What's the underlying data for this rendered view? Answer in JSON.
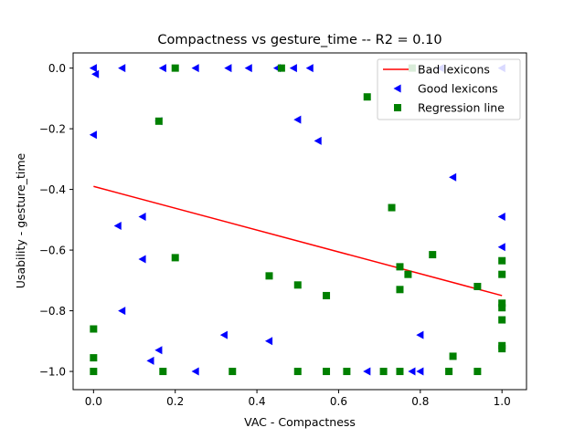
{
  "chart_data": {
    "type": "scatter",
    "title": "Compactness  vs  gesture_time -- R2 = 0.10",
    "xlabel": "VAC - Compactness",
    "ylabel": "Usability - gesture_time",
    "xlim": [
      -0.05,
      1.06
    ],
    "ylim": [
      -1.06,
      0.05
    ],
    "x_ticks": [
      0.0,
      0.2,
      0.4,
      0.6,
      0.8,
      1.0
    ],
    "x_tick_labels": [
      "0.0",
      "0.2",
      "0.4",
      "0.6",
      "0.8",
      "1.0"
    ],
    "y_ticks": [
      0.0,
      -0.2,
      -0.4,
      -0.6,
      -0.8,
      -1.0
    ],
    "y_tick_labels": [
      "0.0",
      "−0.2",
      "−0.4",
      "−0.6",
      "−0.8",
      "−1.0"
    ],
    "legend_position": "top-right",
    "legend": [
      {
        "label": "Bad lexicons",
        "marker": "line",
        "color": "#ff0000"
      },
      {
        "label": "Good lexicons",
        "marker": "triangle-left",
        "color": "#0000ff"
      },
      {
        "label": "Regression line",
        "marker": "square",
        "color": "#008000"
      }
    ],
    "series": [
      {
        "name": "Bad lexicons",
        "kind": "line",
        "color": "#ff0000",
        "points": [
          [
            0.0,
            -0.39
          ],
          [
            1.0,
            -0.75
          ]
        ]
      },
      {
        "name": "Good lexicons",
        "kind": "triangle-left",
        "color": "#0000ff",
        "points": [
          [
            0.0,
            0.0
          ],
          [
            0.005,
            -0.02
          ],
          [
            0.0,
            -0.22
          ],
          [
            0.07,
            0.0
          ],
          [
            0.17,
            0.0
          ],
          [
            0.25,
            0.0
          ],
          [
            0.33,
            0.0
          ],
          [
            0.38,
            0.0
          ],
          [
            0.45,
            0.0
          ],
          [
            0.49,
            0.0
          ],
          [
            0.53,
            0.0
          ],
          [
            0.5,
            -0.17
          ],
          [
            0.55,
            -0.24
          ],
          [
            0.16,
            -0.175
          ],
          [
            0.06,
            -0.52
          ],
          [
            0.12,
            -0.49
          ],
          [
            0.12,
            -0.63
          ],
          [
            0.07,
            -0.8
          ],
          [
            0.16,
            -0.93
          ],
          [
            0.14,
            -0.965
          ],
          [
            0.25,
            -1.0
          ],
          [
            0.32,
            -0.88
          ],
          [
            0.43,
            -0.9
          ],
          [
            0.67,
            -1.0
          ],
          [
            0.78,
            -1.0
          ],
          [
            0.8,
            -1.0
          ],
          [
            0.8,
            -0.88
          ],
          [
            0.88,
            -0.36
          ],
          [
            0.85,
            0.0
          ],
          [
            1.0,
            0.0
          ],
          [
            1.0,
            -0.49
          ],
          [
            1.0,
            -0.59
          ]
        ]
      },
      {
        "name": "Regression line",
        "kind": "square",
        "color": "#008000",
        "points": [
          [
            0.2,
            0.0
          ],
          [
            0.46,
            0.0
          ],
          [
            0.67,
            -0.095
          ],
          [
            0.78,
            0.0
          ],
          [
            0.16,
            -0.175
          ],
          [
            0.73,
            -0.46
          ],
          [
            0.2,
            -0.625
          ],
          [
            0.43,
            -0.685
          ],
          [
            0.5,
            -0.715
          ],
          [
            0.57,
            -0.75
          ],
          [
            0.75,
            -0.655
          ],
          [
            0.75,
            -0.73
          ],
          [
            0.77,
            -0.68
          ],
          [
            0.83,
            -0.615
          ],
          [
            0.94,
            -0.72
          ],
          [
            0.88,
            -0.95
          ],
          [
            1.0,
            -0.635
          ],
          [
            1.0,
            -0.68
          ],
          [
            1.0,
            -0.775
          ],
          [
            1.0,
            -0.79
          ],
          [
            1.0,
            -0.83
          ],
          [
            1.0,
            -0.915
          ],
          [
            1.0,
            -0.925
          ],
          [
            0.0,
            -0.86
          ],
          [
            0.0,
            -0.955
          ],
          [
            0.0,
            -1.0
          ],
          [
            0.17,
            -1.0
          ],
          [
            0.34,
            -1.0
          ],
          [
            0.5,
            -1.0
          ],
          [
            0.57,
            -1.0
          ],
          [
            0.62,
            -1.0
          ],
          [
            0.71,
            -1.0
          ],
          [
            0.75,
            -1.0
          ],
          [
            0.87,
            -1.0
          ],
          [
            0.94,
            -1.0
          ]
        ]
      }
    ]
  }
}
